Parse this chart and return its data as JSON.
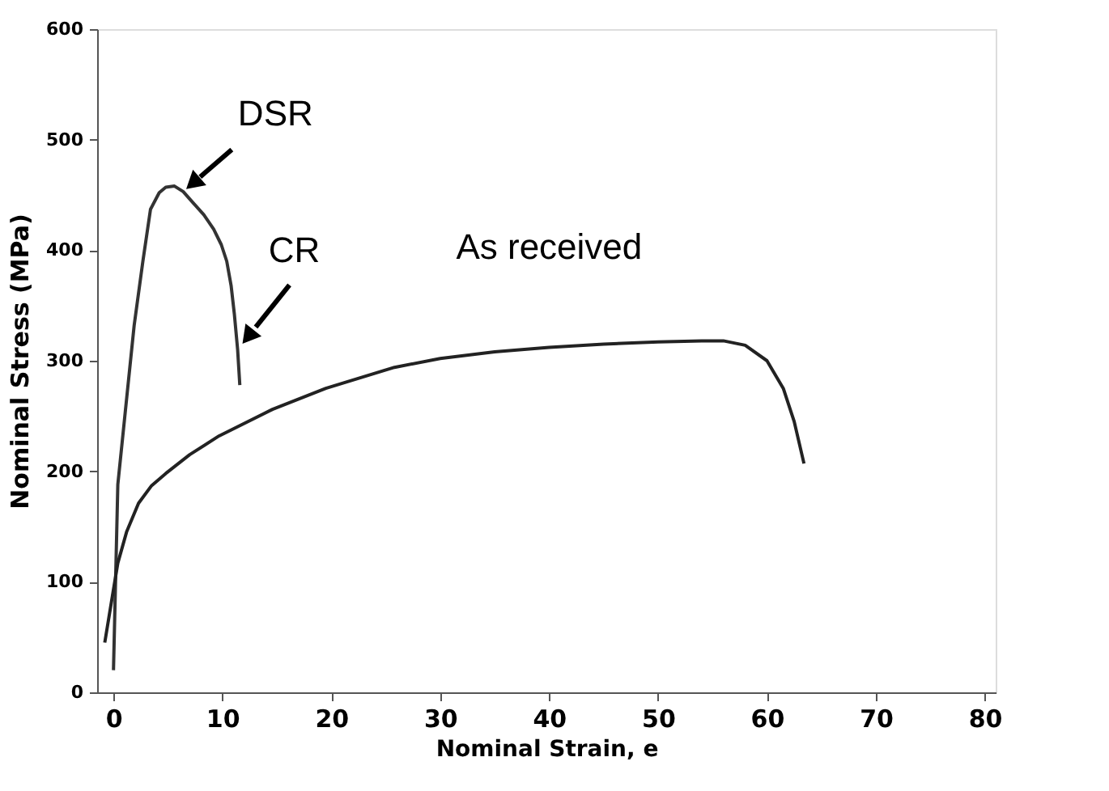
{
  "chart_data": {
    "type": "line",
    "xlabel": "Nominal Strain, e",
    "ylabel": "Nominal Stress (MPa)",
    "xlim": [
      -1.5,
      81
    ],
    "xticks": [
      0,
      10,
      20,
      30,
      40,
      50,
      60,
      70,
      80
    ],
    "ylim": [
      0,
      600
    ],
    "yticks": [
      0,
      100,
      200,
      300,
      400,
      500,
      600
    ],
    "grid": false,
    "marker": "none",
    "line_style": "solid",
    "series": [
      {
        "color": "#333333",
        "x": [
          0,
          0.4,
          1.2,
          1.9,
          2.7,
          3.4,
          4.2,
          4.8,
          5.6,
          6.4,
          7.3,
          8.3,
          9.2,
          9.9,
          10.4,
          10.8,
          11.1,
          11.4,
          11.6
        ],
        "values": [
          20,
          188,
          265,
          332,
          390,
          437,
          452,
          457,
          458,
          453,
          443,
          432,
          419,
          405,
          390,
          368,
          342,
          310,
          278
        ]
      },
      {
        "color": "#222222",
        "x": [
          -0.8,
          0.4,
          1.2,
          2.3,
          3.5,
          4.8,
          7,
          9.7,
          14.6,
          19.5,
          25.8,
          30,
          35,
          40,
          45,
          50,
          54,
          56,
          58,
          60,
          61.5,
          62.5,
          63.4
        ],
        "values": [
          45,
          117,
          145,
          171,
          187,
          198,
          215,
          232,
          256,
          275,
          294,
          302,
          308,
          312,
          315,
          317,
          318,
          318,
          314,
          300,
          275,
          245,
          207
        ]
      }
    ],
    "annotations": [
      {
        "text": "DSR",
        "x": 6.4,
        "y": 453
      },
      {
        "text": "CR",
        "x": 11.4,
        "y": 310
      },
      {
        "text": "As received",
        "x": 40,
        "y": 312
      }
    ]
  }
}
